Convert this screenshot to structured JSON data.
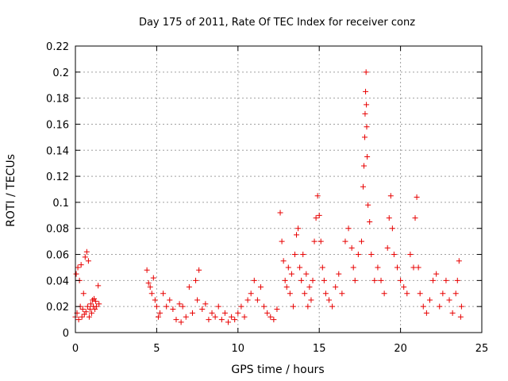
{
  "chart_data": {
    "type": "scatter",
    "title": "Day 175 of 2011, Rate Of TEC Index for receiver conz",
    "xlabel": "GPS time / hours",
    "ylabel": "ROTI / TECUs",
    "xlim": [
      0,
      25
    ],
    "ylim": [
      0,
      0.22
    ],
    "x_ticks": [
      0,
      5,
      10,
      15,
      20,
      25
    ],
    "y_ticks": [
      0,
      0.02,
      0.04,
      0.06,
      0.08,
      0.1,
      0.12,
      0.14,
      0.16,
      0.18,
      0.2,
      0.22
    ],
    "grid": true,
    "marker": "plus",
    "marker_color": "#e80000",
    "series": [
      {
        "name": "ROTI conz",
        "points": [
          [
            0.0,
            0.012
          ],
          [
            0.05,
            0.045
          ],
          [
            0.1,
            0.015
          ],
          [
            0.15,
            0.05
          ],
          [
            0.2,
            0.01
          ],
          [
            0.25,
            0.04
          ],
          [
            0.3,
            0.02
          ],
          [
            0.35,
            0.052
          ],
          [
            0.4,
            0.012
          ],
          [
            0.45,
            0.018
          ],
          [
            0.5,
            0.03
          ],
          [
            0.55,
            0.014
          ],
          [
            0.6,
            0.058
          ],
          [
            0.65,
            0.016
          ],
          [
            0.7,
            0.062
          ],
          [
            0.75,
            0.02
          ],
          [
            0.8,
            0.055
          ],
          [
            0.85,
            0.012
          ],
          [
            0.9,
            0.018
          ],
          [
            0.95,
            0.022
          ],
          [
            1.0,
            0.015
          ],
          [
            1.05,
            0.025
          ],
          [
            1.1,
            0.02
          ],
          [
            1.15,
            0.026
          ],
          [
            1.2,
            0.018
          ],
          [
            1.25,
            0.024
          ],
          [
            1.3,
            0.02
          ],
          [
            1.4,
            0.036
          ],
          [
            1.45,
            0.022
          ],
          [
            4.4,
            0.048
          ],
          [
            4.5,
            0.038
          ],
          [
            4.6,
            0.035
          ],
          [
            4.7,
            0.03
          ],
          [
            4.8,
            0.042
          ],
          [
            4.9,
            0.025
          ],
          [
            5.0,
            0.02
          ],
          [
            5.1,
            0.012
          ],
          [
            5.2,
            0.015
          ],
          [
            5.4,
            0.03
          ],
          [
            5.6,
            0.02
          ],
          [
            5.8,
            0.025
          ],
          [
            6.0,
            0.018
          ],
          [
            6.2,
            0.01
          ],
          [
            6.4,
            0.022
          ],
          [
            6.5,
            0.008
          ],
          [
            6.6,
            0.02
          ],
          [
            6.8,
            0.012
          ],
          [
            7.0,
            0.035
          ],
          [
            7.2,
            0.015
          ],
          [
            7.4,
            0.04
          ],
          [
            7.5,
            0.025
          ],
          [
            7.6,
            0.048
          ],
          [
            7.8,
            0.018
          ],
          [
            8.0,
            0.022
          ],
          [
            8.2,
            0.01
          ],
          [
            8.4,
            0.015
          ],
          [
            8.6,
            0.012
          ],
          [
            8.8,
            0.02
          ],
          [
            9.0,
            0.01
          ],
          [
            9.2,
            0.015
          ],
          [
            9.4,
            0.008
          ],
          [
            9.6,
            0.012
          ],
          [
            9.8,
            0.01
          ],
          [
            10.0,
            0.015
          ],
          [
            10.2,
            0.02
          ],
          [
            10.4,
            0.012
          ],
          [
            10.6,
            0.025
          ],
          [
            10.8,
            0.03
          ],
          [
            11.0,
            0.04
          ],
          [
            11.2,
            0.025
          ],
          [
            11.4,
            0.035
          ],
          [
            11.6,
            0.02
          ],
          [
            11.8,
            0.015
          ],
          [
            12.0,
            0.012
          ],
          [
            12.2,
            0.01
          ],
          [
            12.4,
            0.018
          ],
          [
            12.6,
            0.092
          ],
          [
            12.7,
            0.07
          ],
          [
            12.8,
            0.055
          ],
          [
            12.9,
            0.04
          ],
          [
            13.0,
            0.035
          ],
          [
            13.1,
            0.05
          ],
          [
            13.2,
            0.03
          ],
          [
            13.3,
            0.045
          ],
          [
            13.4,
            0.02
          ],
          [
            13.5,
            0.06
          ],
          [
            13.6,
            0.075
          ],
          [
            13.7,
            0.08
          ],
          [
            13.8,
            0.05
          ],
          [
            13.9,
            0.04
          ],
          [
            14.0,
            0.06
          ],
          [
            14.1,
            0.03
          ],
          [
            14.2,
            0.045
          ],
          [
            14.3,
            0.02
          ],
          [
            14.4,
            0.035
          ],
          [
            14.5,
            0.025
          ],
          [
            14.6,
            0.04
          ],
          [
            14.7,
            0.07
          ],
          [
            14.8,
            0.088
          ],
          [
            14.9,
            0.105
          ],
          [
            15.0,
            0.09
          ],
          [
            15.1,
            0.07
          ],
          [
            15.2,
            0.05
          ],
          [
            15.3,
            0.04
          ],
          [
            15.4,
            0.03
          ],
          [
            15.6,
            0.025
          ],
          [
            15.8,
            0.02
          ],
          [
            16.0,
            0.035
          ],
          [
            16.2,
            0.045
          ],
          [
            16.4,
            0.03
          ],
          [
            16.6,
            0.07
          ],
          [
            16.8,
            0.08
          ],
          [
            17.0,
            0.065
          ],
          [
            17.1,
            0.05
          ],
          [
            17.2,
            0.04
          ],
          [
            17.4,
            0.06
          ],
          [
            17.6,
            0.07
          ],
          [
            17.7,
            0.112
          ],
          [
            17.75,
            0.128
          ],
          [
            17.8,
            0.15
          ],
          [
            17.82,
            0.168
          ],
          [
            17.85,
            0.185
          ],
          [
            17.88,
            0.2
          ],
          [
            17.9,
            0.175
          ],
          [
            17.92,
            0.158
          ],
          [
            17.95,
            0.135
          ],
          [
            18.0,
            0.098
          ],
          [
            18.1,
            0.085
          ],
          [
            18.2,
            0.06
          ],
          [
            18.4,
            0.04
          ],
          [
            18.6,
            0.05
          ],
          [
            18.8,
            0.04
          ],
          [
            19.0,
            0.03
          ],
          [
            19.2,
            0.065
          ],
          [
            19.3,
            0.088
          ],
          [
            19.4,
            0.105
          ],
          [
            19.5,
            0.08
          ],
          [
            19.6,
            0.06
          ],
          [
            19.8,
            0.05
          ],
          [
            20.0,
            0.04
          ],
          [
            20.2,
            0.035
          ],
          [
            20.4,
            0.03
          ],
          [
            20.6,
            0.06
          ],
          [
            20.8,
            0.05
          ],
          [
            20.9,
            0.088
          ],
          [
            21.0,
            0.104
          ],
          [
            21.1,
            0.05
          ],
          [
            21.2,
            0.03
          ],
          [
            21.4,
            0.02
          ],
          [
            21.6,
            0.015
          ],
          [
            21.8,
            0.025
          ],
          [
            22.0,
            0.04
          ],
          [
            22.2,
            0.045
          ],
          [
            22.4,
            0.02
          ],
          [
            22.6,
            0.03
          ],
          [
            22.8,
            0.04
          ],
          [
            23.0,
            0.025
          ],
          [
            23.2,
            0.015
          ],
          [
            23.4,
            0.03
          ],
          [
            23.5,
            0.04
          ],
          [
            23.6,
            0.055
          ],
          [
            23.7,
            0.012
          ],
          [
            23.75,
            0.02
          ]
        ]
      }
    ]
  }
}
